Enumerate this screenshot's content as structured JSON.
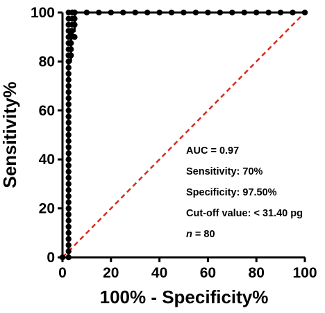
{
  "chart_data": {
    "type": "line",
    "xlabel": "100% - Specificity%",
    "ylabel": "Sensitivity%",
    "xlim": [
      0,
      100
    ],
    "ylim": [
      0,
      100
    ],
    "xticks": [
      "0",
      "20",
      "40",
      "60",
      "80",
      "100"
    ],
    "yticks": [
      "0",
      "20",
      "40",
      "60",
      "80",
      "100"
    ],
    "grid": false,
    "series": [
      {
        "color": "#000000",
        "marker": "circle",
        "x": [
          0,
          2.5,
          2.5,
          2.5,
          2.5,
          2.5,
          2.5,
          2.5,
          2.5,
          2.5,
          2.5,
          2.5,
          2.5,
          2.5,
          2.5,
          2.5,
          2.5,
          2.5,
          2.5,
          2.5,
          2.5,
          2.5,
          2.5,
          2.5,
          2.5,
          2.5,
          2.5,
          2.5,
          2.5,
          2.5,
          2.5,
          2.5,
          2.5,
          2.5,
          2.5,
          2.5,
          2.5,
          2.5,
          2.5,
          2.5,
          2.5,
          2.5,
          2.5,
          2.5,
          3.5,
          3.5,
          3.5,
          3.5,
          3.5,
          3.5,
          4,
          4,
          4,
          4,
          4,
          5,
          5,
          5,
          5,
          5,
          10,
          15,
          20,
          25,
          30,
          35,
          40,
          45,
          50,
          55,
          60,
          65,
          70,
          75,
          80,
          85,
          90,
          95,
          100
        ],
        "y": [
          0,
          0,
          2.5,
          5,
          7.5,
          10,
          12.5,
          15,
          17.5,
          20,
          22.5,
          25,
          27.5,
          30,
          32.5,
          35,
          37.5,
          40,
          42.5,
          45,
          47.5,
          50,
          52.5,
          55,
          57.5,
          60,
          62.5,
          65,
          67.5,
          70,
          72.5,
          75,
          77.5,
          80,
          82.5,
          85,
          87.5,
          90,
          92.5,
          95,
          97.5,
          100,
          80,
          82.5,
          82.5,
          85,
          87.5,
          90,
          91,
          92.5,
          92.5,
          95,
          97.5,
          100,
          100,
          90,
          95,
          97.5,
          100,
          100,
          100,
          100,
          100,
          100,
          100,
          100,
          100,
          100,
          100,
          100,
          100,
          100,
          100,
          100,
          100,
          100,
          100,
          100,
          100
        ]
      },
      {
        "color": "#d62b1e",
        "style": "dashed",
        "x": [
          0,
          100
        ],
        "y": [
          0,
          100
        ]
      }
    ],
    "annotations": [
      "AUC = 0.97",
      "Sensitivity: 70%",
      "Specificity: 97.50%",
      "Cut-off value: < 31.40 pg"
    ],
    "n_label": {
      "italic": "n",
      "rest": " = 80"
    }
  }
}
